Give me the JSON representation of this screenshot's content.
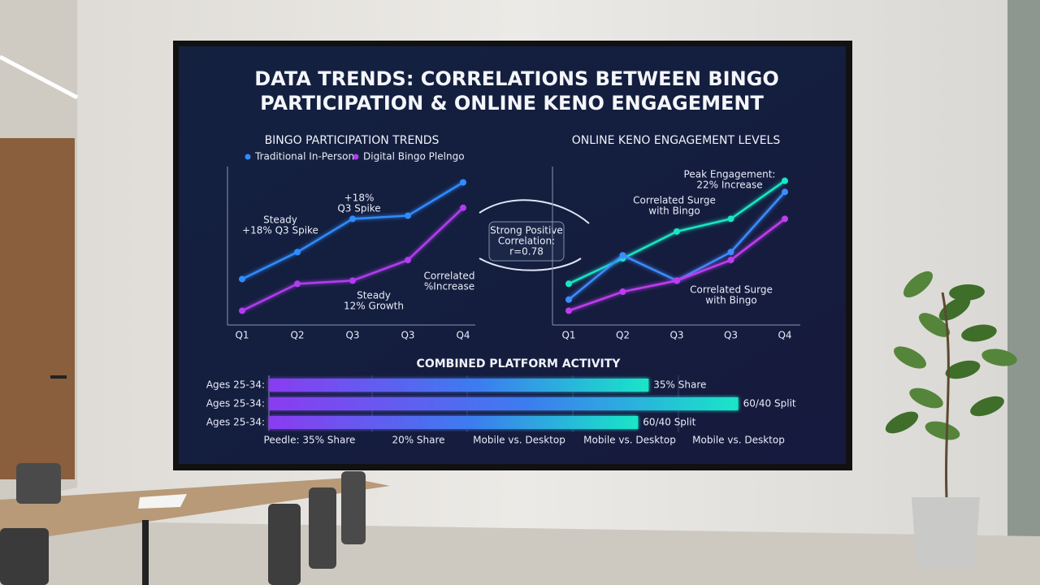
{
  "title_lines": [
    "DATA TRENDS: CORRELATIONS BETWEEN BINGO",
    "PARTICIPATION & ONLINE KENO ENGAGEMENT"
  ],
  "callout": [
    "Strong Positive",
    "Correlation:",
    "r=0.78"
  ],
  "chart_data": [
    {
      "type": "line",
      "title": "BINGO PARTICIPATION TRENDS",
      "categories": [
        "Q1",
        "Q2",
        "Q3",
        "Q3",
        "Q4"
      ],
      "ylim": [
        0,
        100
      ],
      "series": [
        {
          "name": "Traditional In-Person",
          "color": "#2f8cff",
          "values": [
            29,
            46,
            67,
            69,
            90
          ]
        },
        {
          "name": "Digital Bingo Plelngo",
          "color": "#b13cf0",
          "values": [
            9,
            26,
            28,
            41,
            74
          ]
        }
      ],
      "annotations": [
        [
          "Steady",
          "+18% Q3 Spike"
        ],
        [
          "+18%",
          "Q3 Spike"
        ],
        [
          "Steady",
          "12% Growth"
        ],
        [
          "Correlated",
          "%Increase"
        ]
      ]
    },
    {
      "type": "line",
      "title": "ONLINE KENO ENGAGEMENT LEVELS",
      "categories": [
        "Q1",
        "Q2",
        "Q3",
        "Q3",
        "Q4"
      ],
      "ylim": [
        0,
        100
      ],
      "series": [
        {
          "color": "#19e6c8",
          "values": [
            26,
            42,
            59,
            67,
            91
          ]
        },
        {
          "color": "#3c8cff",
          "values": [
            16,
            44,
            28,
            46,
            84
          ]
        },
        {
          "color": "#c03cf0",
          "values": [
            9,
            21,
            28,
            41,
            67
          ]
        }
      ],
      "annotations": [
        [
          "Peak Engagement:",
          "22% Increase"
        ],
        [
          "Correlated Surge",
          "with Bingo"
        ],
        [
          "Correlated Surge",
          "with Bingo"
        ]
      ]
    },
    {
      "type": "hbar",
      "title": "COMBINED PLATFORM ACTIVITY",
      "categories": [
        "Ages 25-34:",
        "Ages 25-34:",
        "Ages 25-34:"
      ],
      "xlim": [
        0,
        100
      ],
      "values": [
        72,
        89,
        70
      ],
      "bar_notes": [
        "35% Share",
        "60/40 Split",
        "60/40 Split"
      ],
      "footer_labels": [
        "Peedle: 35% Share",
        "20% Share",
        "Mobile vs. Desktop",
        "Mobile vs. Desktop",
        "Mobile vs. Desktop"
      ]
    }
  ]
}
